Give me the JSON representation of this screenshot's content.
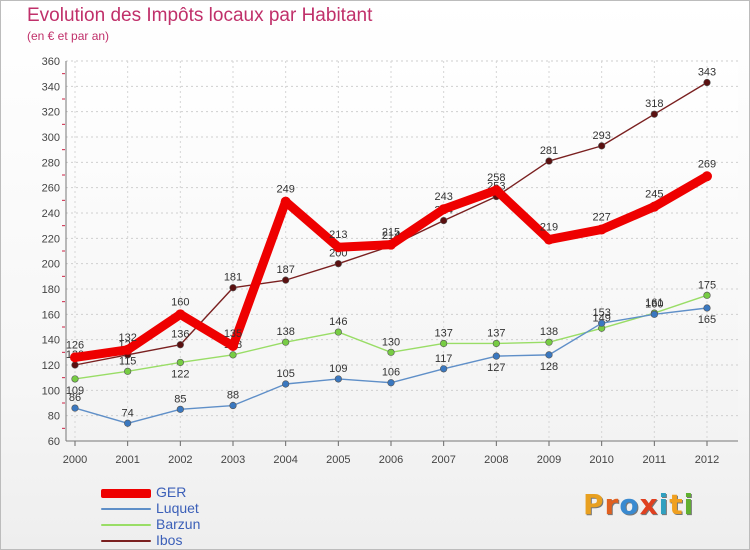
{
  "title": "Evolution des Impôts locaux par Habitant",
  "subtitle": "(en € et par an)",
  "logo": {
    "text": "Proxiti",
    "letters": [
      {
        "ch": "P",
        "color": "#e8a020"
      },
      {
        "ch": "r",
        "color": "#e06020"
      },
      {
        "ch": "o",
        "color": "#3a8ad0"
      },
      {
        "ch": "x",
        "color": "#e04020"
      },
      {
        "ch": "i",
        "color": "#30a0c0"
      },
      {
        "ch": "t",
        "color": "#f0a020"
      },
      {
        "ch": "i",
        "color": "#60b030"
      }
    ]
  },
  "chart_data": {
    "type": "line",
    "title": "Evolution des Impôts locaux par Habitant",
    "subtitle": "(en € et par an)",
    "xlabel": "",
    "ylabel": "",
    "ylim": [
      60,
      360
    ],
    "yticks": [
      60,
      80,
      100,
      120,
      140,
      160,
      180,
      200,
      220,
      240,
      260,
      280,
      300,
      320,
      340,
      360
    ],
    "categories": [
      "2000",
      "2001",
      "2002",
      "2003",
      "2004",
      "2005",
      "2006",
      "2007",
      "2008",
      "2009",
      "2010",
      "2011",
      "2012"
    ],
    "grid": true,
    "legend_position": "bottom-left",
    "series": [
      {
        "name": "GER",
        "color": "#ee0000",
        "marker": "#ee0000",
        "values": [
          126,
          132,
          160,
          135,
          249,
          213,
          215,
          243,
          258,
          219,
          227,
          245,
          269
        ],
        "labels_above": [
          true,
          true,
          true,
          true,
          true,
          true,
          true,
          true,
          true,
          true,
          true,
          true,
          true
        ]
      },
      {
        "name": "Luquet",
        "color": "#5f8fc8",
        "marker": "#3a78c0",
        "values": [
          86,
          74,
          85,
          88,
          105,
          109,
          106,
          117,
          127,
          128,
          153,
          160,
          165
        ],
        "labels_above": [
          true,
          true,
          true,
          true,
          true,
          true,
          true,
          true,
          false,
          false,
          true,
          true,
          false
        ]
      },
      {
        "name": "Barzun",
        "color": "#99dd66",
        "marker": "#77cc44",
        "values": [
          109,
          115,
          122,
          128,
          138,
          146,
          130,
          137,
          137,
          138,
          149,
          161,
          175
        ],
        "labels_above": [
          false,
          true,
          false,
          true,
          true,
          true,
          true,
          true,
          true,
          true,
          true,
          true,
          true
        ]
      },
      {
        "name": "Ibos",
        "color": "#7a2020",
        "marker": "#5a1010",
        "values": [
          120,
          128,
          136,
          181,
          187,
          200,
          214,
          234,
          253,
          281,
          293,
          318,
          343
        ],
        "labels_above": [
          true,
          true,
          true,
          true,
          true,
          true,
          true,
          true,
          true,
          true,
          true,
          true,
          true
        ]
      }
    ]
  }
}
